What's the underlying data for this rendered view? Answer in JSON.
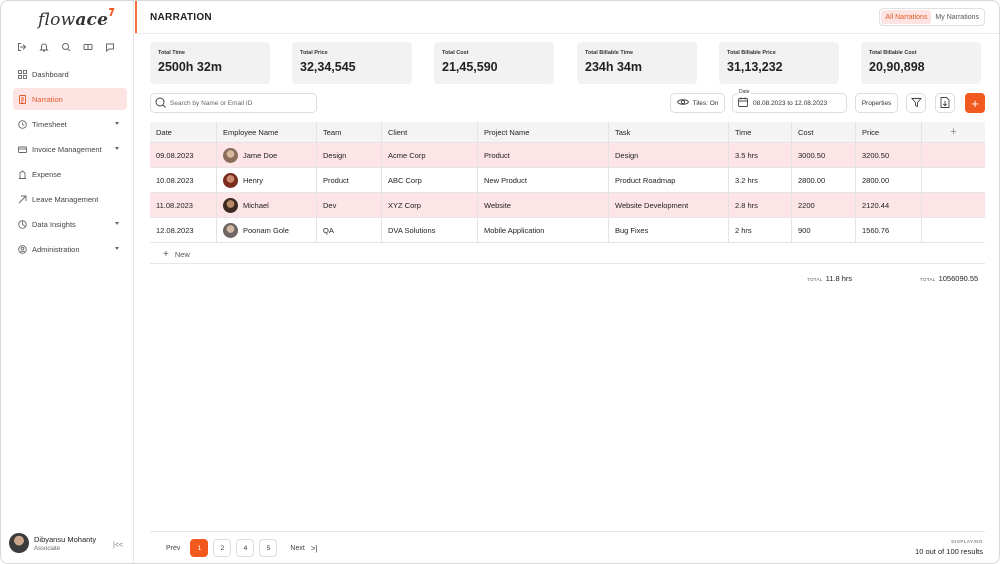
{
  "app": {
    "logo_text_light": "flow",
    "logo_text_bold": "ace"
  },
  "sidebar": {
    "quick_icons": [
      "logout-icon",
      "bell-icon",
      "search-icon",
      "ticket-icon",
      "chat-icon"
    ],
    "items": [
      {
        "label": "Dashboard",
        "icon": "grid-icon",
        "has_caret": false,
        "active": false
      },
      {
        "label": "Narration",
        "icon": "document-icon",
        "has_caret": false,
        "active": true
      },
      {
        "label": "Timesheet",
        "icon": "clock-icon",
        "has_caret": true,
        "active": false
      },
      {
        "label": "Invoice Management",
        "icon": "invoice-icon",
        "has_caret": true,
        "active": false
      },
      {
        "label": "Expense",
        "icon": "expense-icon",
        "has_caret": false,
        "active": false
      },
      {
        "label": "Leave Management",
        "icon": "leave-icon",
        "has_caret": false,
        "active": false
      },
      {
        "label": "Data Insights",
        "icon": "insights-icon",
        "has_caret": true,
        "active": false
      },
      {
        "label": "Administration",
        "icon": "admin-icon",
        "has_caret": true,
        "active": false
      }
    ],
    "user": {
      "name": "Dibyansu Mohanty",
      "role": "Associate"
    }
  },
  "header": {
    "title": "NARRATION",
    "tabs": [
      {
        "label": "All Narrations",
        "active": true
      },
      {
        "label": "My Narrations",
        "active": false
      }
    ]
  },
  "stats": [
    {
      "label": "Total Time",
      "value": "2500h 32m"
    },
    {
      "label": "Total Price",
      "value": "32,34,545"
    },
    {
      "label": "Total Cost",
      "value": "21,45,590"
    },
    {
      "label": "Total Billable Time",
      "value": "234h 34m"
    },
    {
      "label": "Total Billable Price",
      "value": "31,13,232"
    },
    {
      "label": "Total Billable Cost",
      "value": "20,90,898"
    }
  ],
  "toolbar": {
    "search_placeholder": "Search by Name or Email ID",
    "tiles_label": "Tiles: On",
    "date_label": "Date",
    "date_value": "08.08.2023 to 12.08.2023",
    "properties_label": "Properties",
    "add_label": "+"
  },
  "table": {
    "columns": [
      "Date",
      "Employee Name",
      "Team",
      "Client",
      "Project Name",
      "Task",
      "Time",
      "Cost",
      "Price",
      "+"
    ],
    "rows": [
      {
        "date": "09.08.2023",
        "employee": "Jame Doe",
        "team": "Design",
        "client": "Acme Corp",
        "project": "Product",
        "task": "Design",
        "time": "3.5 hrs",
        "cost": "3000.50",
        "price": "3200.50",
        "highlight": true
      },
      {
        "date": "10.08.2023",
        "employee": "Henry",
        "team": "Product",
        "client": "ABC Corp",
        "project": "New Product",
        "task": "Product Roadmap",
        "time": "3.2 hrs",
        "cost": "2800.00",
        "price": "2800.00",
        "highlight": false
      },
      {
        "date": "11.08.2023",
        "employee": "Michael",
        "team": "Dev",
        "client": "XYZ Corp",
        "project": "Website",
        "task": "Website Development",
        "time": "2.8 hrs",
        "cost": "2200",
        "price": "2120.44",
        "highlight": true
      },
      {
        "date": "12.08.2023",
        "employee": "Poonam Gole",
        "team": "QA",
        "client": "DVA Solutions",
        "project": "Mobile Application",
        "task": "Bug Fixes",
        "time": "2 hrs",
        "cost": "900",
        "price": "1560.76",
        "highlight": false
      }
    ],
    "new_label": "New",
    "total_time_label": "TOTAL",
    "total_time": "11.8 hrs",
    "total_price_label": "TOTAL",
    "total_price": "1056090.55"
  },
  "pagination": {
    "prev": "Prev",
    "pages": [
      "1",
      "2",
      "4",
      "5"
    ],
    "active_page": "1",
    "next": "Next",
    "displaying_label": "DISPLAYING",
    "displaying_value": "10 out of 100 results"
  },
  "colors": {
    "accent": "#f2591f",
    "active_bg": "#fde4e2",
    "highlight_row": "#fde4e6"
  }
}
